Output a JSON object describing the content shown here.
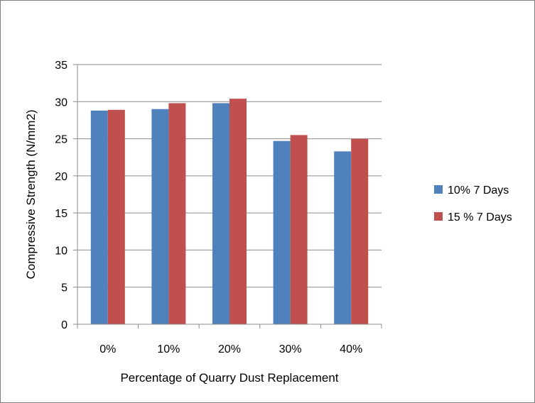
{
  "chart_data": {
    "type": "bar",
    "categories": [
      "0%",
      "10%",
      "20%",
      "30%",
      "40%"
    ],
    "series": [
      {
        "name": "10% 7 Days",
        "color": "#4F81BD",
        "values": [
          28.8,
          29.0,
          29.8,
          24.7,
          23.3
        ]
      },
      {
        "name": "15 % 7 Days",
        "color": "#C0504D",
        "values": [
          28.9,
          29.8,
          30.4,
          25.5,
          25.0
        ]
      }
    ],
    "title": "",
    "xlabel": "Percentage of Quarry Dust Replacement",
    "ylabel": "Compressive Strength (N/mm2)",
    "ylim": [
      0,
      35
    ],
    "yticks": [
      0,
      5,
      10,
      15,
      20,
      25,
      30,
      35
    ],
    "grid": true,
    "legend_position": "right"
  }
}
